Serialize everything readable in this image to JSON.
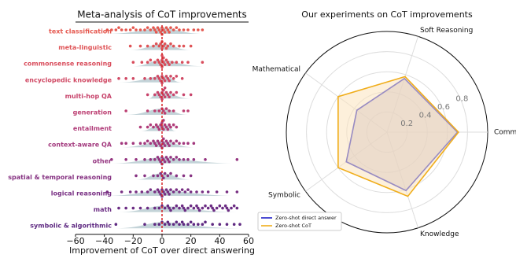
{
  "chart_data": [
    {
      "type": "swarm",
      "title": "Meta-analysis of CoT improvements",
      "xlabel": "Improvement of CoT over direct answering",
      "categories": [
        "text classification",
        "meta-linguistic",
        "commonsense reasoning",
        "encyclopedic knowledge",
        "multi-hop QA",
        "generation",
        "entailment",
        "context-aware QA",
        "other",
        "spatial & temporal reasoning",
        "logical reasoning",
        "math",
        "symbolic & algorithmic"
      ],
      "colors": [
        "#e5584f",
        "#df5356",
        "#d94d5c",
        "#d04863",
        "#c7436b",
        "#bc3f72",
        "#b03b79",
        "#a2387d",
        "#943580",
        "#863282",
        "#782f83",
        "#6b2c83",
        "#5f2a82"
      ],
      "values": [
        [
          -38,
          -35,
          -32,
          -30,
          -28,
          -25,
          -22,
          -20,
          -18,
          -15,
          -12,
          -10,
          -8,
          -6,
          -5,
          -4,
          -3,
          -2,
          -1,
          0,
          0,
          1,
          2,
          3,
          4,
          5,
          6,
          8,
          10,
          12,
          15,
          18,
          22,
          25,
          28
        ],
        [
          -22,
          -15,
          -10,
          -6,
          -4,
          -2,
          -1,
          0,
          0,
          1,
          2,
          3,
          4,
          6,
          8,
          12,
          15,
          20
        ],
        [
          -20,
          -14,
          -10,
          -8,
          -5,
          -3,
          -2,
          -1,
          0,
          0,
          0,
          1,
          1,
          2,
          3,
          4,
          5,
          7,
          10,
          14,
          18,
          28
        ],
        [
          -30,
          -25,
          -20,
          -12,
          -8,
          -5,
          -3,
          -2,
          -1,
          0,
          0,
          1,
          2,
          3,
          4,
          5,
          6,
          8,
          10,
          14
        ],
        [
          -10,
          -5,
          -3,
          -2,
          -1,
          0,
          0,
          1,
          1,
          2,
          2,
          3,
          4,
          5,
          6,
          8,
          10,
          15,
          20
        ],
        [
          -25,
          -10,
          -5,
          -2,
          0,
          1,
          2,
          3,
          5,
          8,
          15,
          18
        ],
        [
          -15,
          -10,
          -8,
          -6,
          -4,
          -3,
          -2,
          -1,
          0,
          0,
          1,
          1,
          2,
          3,
          4,
          5,
          6,
          8,
          10
        ],
        [
          -28,
          -25,
          -20,
          -15,
          -12,
          -10,
          -8,
          -6,
          -5,
          -4,
          -3,
          -2,
          -1,
          0,
          0,
          1,
          1,
          2,
          3,
          4,
          5,
          6,
          8,
          10,
          12,
          15,
          18,
          22
        ],
        [
          -35,
          -25,
          -18,
          -12,
          -8,
          -5,
          -3,
          -2,
          -1,
          0,
          0,
          1,
          2,
          3,
          4,
          5,
          6,
          8,
          10,
          12,
          15,
          18,
          22,
          30,
          52
        ],
        [
          -18,
          -12,
          -6,
          -3,
          -1,
          0,
          1,
          2,
          4,
          6,
          10,
          15,
          20
        ],
        [
          -38,
          -28,
          -22,
          -18,
          -14,
          -10,
          -8,
          -5,
          -3,
          -2,
          -1,
          0,
          0,
          1,
          2,
          3,
          4,
          5,
          6,
          8,
          10,
          12,
          14,
          16,
          18,
          20,
          24,
          28,
          32,
          38,
          45,
          52
        ],
        [
          -30,
          -25,
          -20,
          -15,
          -10,
          -5,
          -2,
          0,
          2,
          4,
          5,
          6,
          8,
          10,
          12,
          14,
          15,
          16,
          18,
          20,
          22,
          24,
          25,
          26,
          28,
          30,
          32,
          34,
          35,
          36,
          38,
          40,
          42,
          44,
          45,
          46,
          48,
          50,
          52
        ],
        [
          -32,
          -12,
          -5,
          -2,
          0,
          2,
          4,
          5,
          8,
          10,
          12,
          14,
          15,
          18,
          20,
          22,
          25,
          28,
          30,
          35,
          40,
          45,
          50,
          54
        ]
      ],
      "xlim": [
        -60,
        60
      ],
      "xticks": [
        {
          "value": -60,
          "label": "−60"
        },
        {
          "value": -40,
          "label": "−40"
        },
        {
          "value": -20,
          "label": "−20"
        },
        0,
        20,
        40,
        60
      ],
      "zero_line_color": "#d62728"
    },
    {
      "type": "radar",
      "title": "Our experiments on CoT improvements",
      "axes": [
        "Commonsense",
        "Soft Reasoning",
        "Mathematical",
        "Symbolic",
        "Knowledge"
      ],
      "series": [
        {
          "name": "Zero-shot direct answer",
          "color": "#1f1fc8",
          "fill": "#bdb3c8",
          "values": [
            0.7,
            0.56,
            0.37,
            0.5,
            0.61
          ]
        },
        {
          "name": "Zero-shot CoT",
          "color": "#f0ad1a",
          "fill": "#fbe3bd",
          "values": [
            0.71,
            0.58,
            0.6,
            0.6,
            0.67
          ]
        }
      ],
      "rlim": [
        0,
        1
      ],
      "rticks": [
        0.2,
        0.4,
        0.6,
        0.8
      ],
      "legend": "lower left"
    }
  ]
}
